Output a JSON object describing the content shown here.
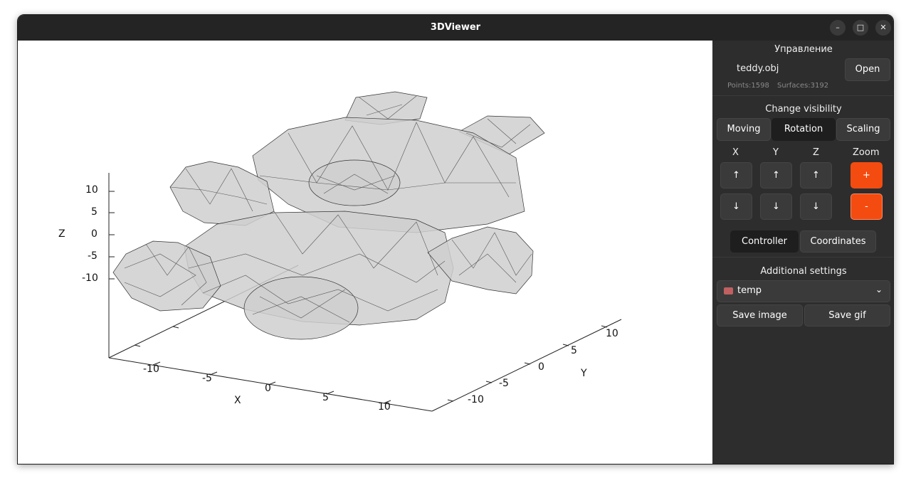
{
  "window": {
    "title": "3DViewer"
  },
  "controls": {
    "minimize_icon": "minimize-icon",
    "maximize_icon": "maximize-icon",
    "close_icon": "close-icon"
  },
  "plot": {
    "z_label": "Z",
    "x_label": "X",
    "y_label": "Y",
    "z_ticks": [
      "10",
      "5",
      "0",
      "-5",
      "-10"
    ],
    "x_ticks": [
      "-10",
      "-5",
      "0",
      "5",
      "10"
    ],
    "y_ticks": [
      "10",
      "5",
      "0",
      "-5",
      "-10"
    ],
    "model": "teddy wireframe mesh"
  },
  "panel": {
    "header": "Управление",
    "file_name": "teddy.obj",
    "open_label": "Open",
    "points": "Points:1598",
    "surfaces": "Surfaces:3192",
    "visibility_title": "Change visibility",
    "modes": {
      "moving": "Moving",
      "rotation": "Rotation",
      "scaling": "Scaling"
    },
    "axes": {
      "x": "X",
      "y": "Y",
      "z": "Z",
      "zoom": "Zoom"
    },
    "up_arrow": "↑",
    "down_arrow": "↓",
    "zoom_plus": "+",
    "zoom_minus": "-",
    "view_tabs": {
      "controller": "Controller",
      "coordinates": "Coordinates"
    },
    "additional_title": "Additional settings",
    "folder": "temp",
    "save_image": "Save image",
    "save_gif": "Save gif",
    "accent_color": "#f44b10"
  }
}
